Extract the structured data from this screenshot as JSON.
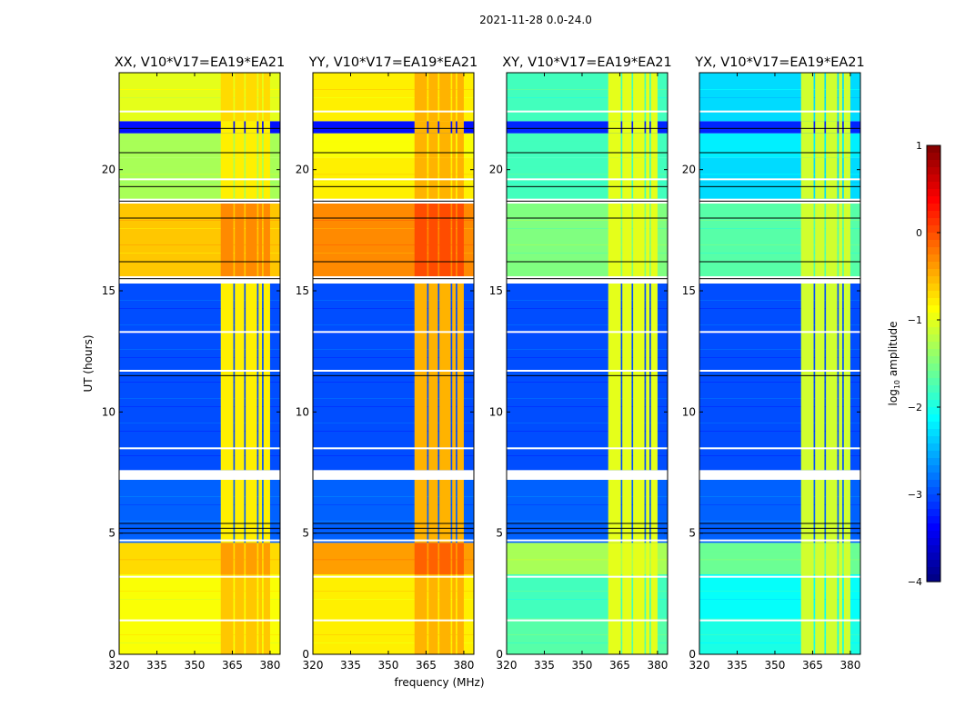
{
  "chart_data": {
    "type": "heatmap",
    "title": "2021-11-28 0.0-24.0",
    "xlabel": "frequency (MHz)",
    "ylabel": "UT (hours)",
    "xlim": [
      320,
      384
    ],
    "ylim": [
      0,
      24
    ],
    "xticks": [
      "320",
      "335",
      "350",
      "365",
      "380"
    ],
    "xtick_values": [
      320,
      335,
      350,
      365,
      380
    ],
    "yticks": [
      "0",
      "5",
      "10",
      "15",
      "20"
    ],
    "ytick_values": [
      0,
      5,
      10,
      15,
      20
    ],
    "colorbar": {
      "label": "log10 amplitude",
      "label_main": "log",
      "label_sub": "10",
      "label_rest": " amplitude",
      "colormap": "jet",
      "range": [
        -4,
        1
      ],
      "ticks": [
        "1",
        "0",
        "−1",
        "−2",
        "−3",
        "−4"
      ],
      "tick_values": [
        1,
        0,
        -1,
        -2,
        -3,
        -4
      ]
    },
    "panels": [
      {
        "title": "XX, V10*V17=EA19*EA21"
      },
      {
        "title": "YY, V10*V17=EA19*EA21"
      },
      {
        "title": "XY, V10*V17=EA19*EA21"
      },
      {
        "title": "YX, V10*V17=EA19*EA21"
      }
    ],
    "time_segments_hours": [
      {
        "t": [
          0,
          1.5
        ],
        "levels": [
          -0.9,
          -0.8,
          -1.7,
          -2.0
        ]
      },
      {
        "t": [
          1.5,
          3.3
        ],
        "levels": [
          -0.9,
          -0.8,
          -1.8,
          -2.1
        ]
      },
      {
        "t": [
          3.3,
          4.6
        ],
        "levels": [
          -0.7,
          -0.4,
          -1.3,
          -1.6
        ]
      },
      {
        "t": [
          4.6,
          7.2
        ],
        "levels": [
          -2.9,
          -2.9,
          -2.9,
          -2.9
        ]
      },
      {
        "t": [
          7.6,
          15.3
        ],
        "levels": [
          -3.0,
          -3.0,
          -3.0,
          -3.0
        ]
      },
      {
        "t": [
          15.6,
          18.6
        ],
        "levels": [
          -0.6,
          -0.3,
          -1.5,
          -1.7
        ]
      },
      {
        "t": [
          18.8,
          20.5
        ],
        "levels": [
          -1.3,
          -0.8,
          -1.8,
          -2.3
        ]
      },
      {
        "t": [
          20.5,
          21.5
        ],
        "levels": [
          -1.3,
          -0.9,
          -1.8,
          -2.2
        ]
      },
      {
        "t": [
          21.5,
          22.0
        ],
        "levels": [
          -3.3,
          -3.3,
          -3.2,
          -3.2
        ]
      },
      {
        "t": [
          22.0,
          24.0
        ],
        "levels": [
          -1.0,
          -0.8,
          -1.8,
          -2.3
        ]
      }
    ],
    "rfi_channels_mhz": [
      [
        360.4,
        365.4
      ],
      [
        366.0,
        369.7
      ],
      [
        370.3,
        374.8
      ],
      [
        375.4,
        376.8
      ],
      [
        377.4,
        380.0
      ]
    ],
    "rfi_levels": [
      -0.8,
      -0.5,
      -1.0,
      -1.1
    ],
    "flagged_hours_white": [
      1.4,
      3.2,
      4.7,
      7.3,
      7.45,
      8.5,
      11.7,
      13.3,
      15.35,
      19.6,
      22.4
    ],
    "flagged_hours_black": [
      5.0,
      5.2,
      5.4,
      11.5,
      15.5,
      16.2,
      18.0,
      18.7,
      19.3,
      20.7,
      21.7
    ]
  }
}
